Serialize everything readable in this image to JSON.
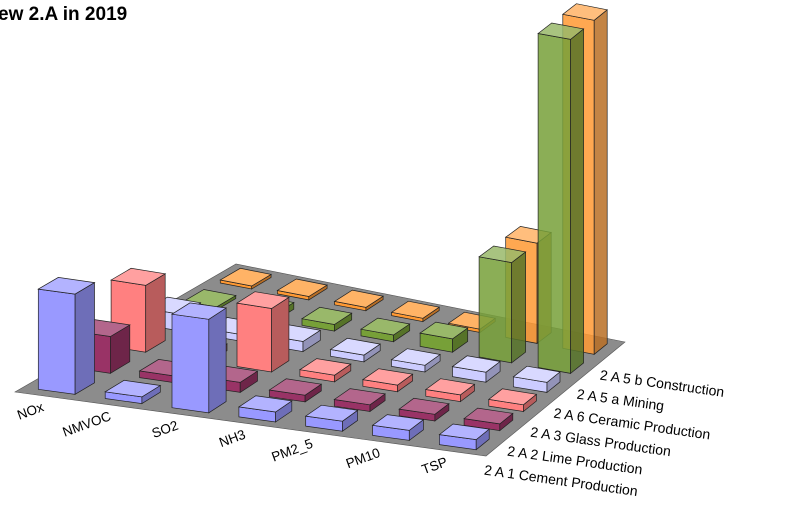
{
  "chart_data": {
    "type": "bar",
    "title": "ew 2.A in 2019",
    "categories": [
      "NOx",
      "NMVOC",
      "SO2",
      "NH3",
      "PM2_5",
      "PM10",
      "TSP"
    ],
    "series": [
      {
        "name": "2 A 1 Cement Production",
        "color": "#9999ff",
        "values": [
          30,
          2,
          28,
          3,
          3,
          3,
          3
        ]
      },
      {
        "name": "2 A 2 Lime Production",
        "color": "#993366",
        "values": [
          11,
          2,
          3,
          2,
          2,
          2,
          2
        ]
      },
      {
        "name": "2 A 3 Glass Production",
        "color": "#ff8080",
        "values": [
          20,
          2,
          19,
          2,
          2,
          2,
          2
        ]
      },
      {
        "name": "2 A 6 Ceramic Production",
        "color": "#ccccff",
        "values": [
          5,
          2,
          3,
          2,
          2,
          3,
          3
        ]
      },
      {
        "name": "2 A 5 a Mining",
        "color": "#77a038",
        "values": [
          0,
          2,
          2,
          2,
          4,
          30,
          100
        ]
      },
      {
        "name": "2 A 5 b Construction",
        "color": "#ff9933",
        "values": [
          0,
          1,
          1,
          1,
          1,
          30,
          100
        ]
      }
    ]
  }
}
